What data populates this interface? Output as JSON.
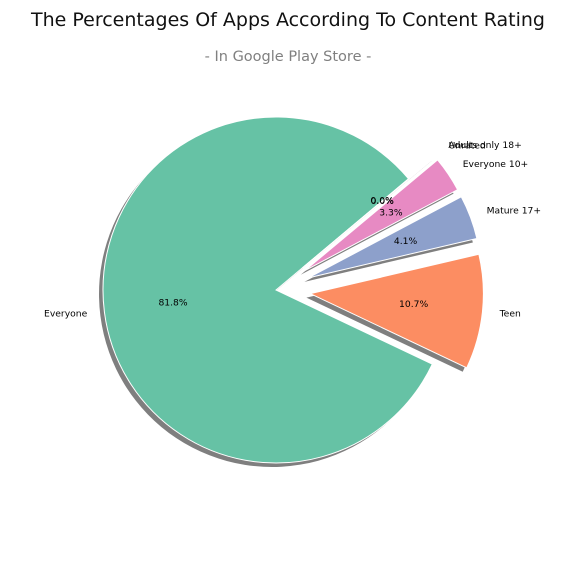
{
  "chart_data": {
    "type": "pie",
    "title": "The Percentages Of Apps According To Content Rating",
    "subtitle": "- In Google Play Store -",
    "slices": [
      {
        "label": "Everyone",
        "value": 81.8,
        "pct_label": "81.8%",
        "color": "#66c2a5"
      },
      {
        "label": "Teen",
        "value": 10.7,
        "pct_label": "10.7%",
        "color": "#fc8d62"
      },
      {
        "label": "Mature 17+",
        "value": 4.1,
        "pct_label": "4.1%",
        "color": "#8da0cb"
      },
      {
        "label": "Everyone 10+",
        "value": 3.3,
        "pct_label": "3.3%",
        "color": "#e78ac3"
      },
      {
        "label": "Unrated",
        "value": 0.02,
        "pct_label": "0.0%",
        "color": "#a6d854"
      },
      {
        "label": "Adults only 18+",
        "value": 0.03,
        "pct_label": "0.0%",
        "color": "#ffd92f"
      }
    ],
    "start_angle_deg": 40,
    "shadow": true,
    "legend": "none"
  }
}
